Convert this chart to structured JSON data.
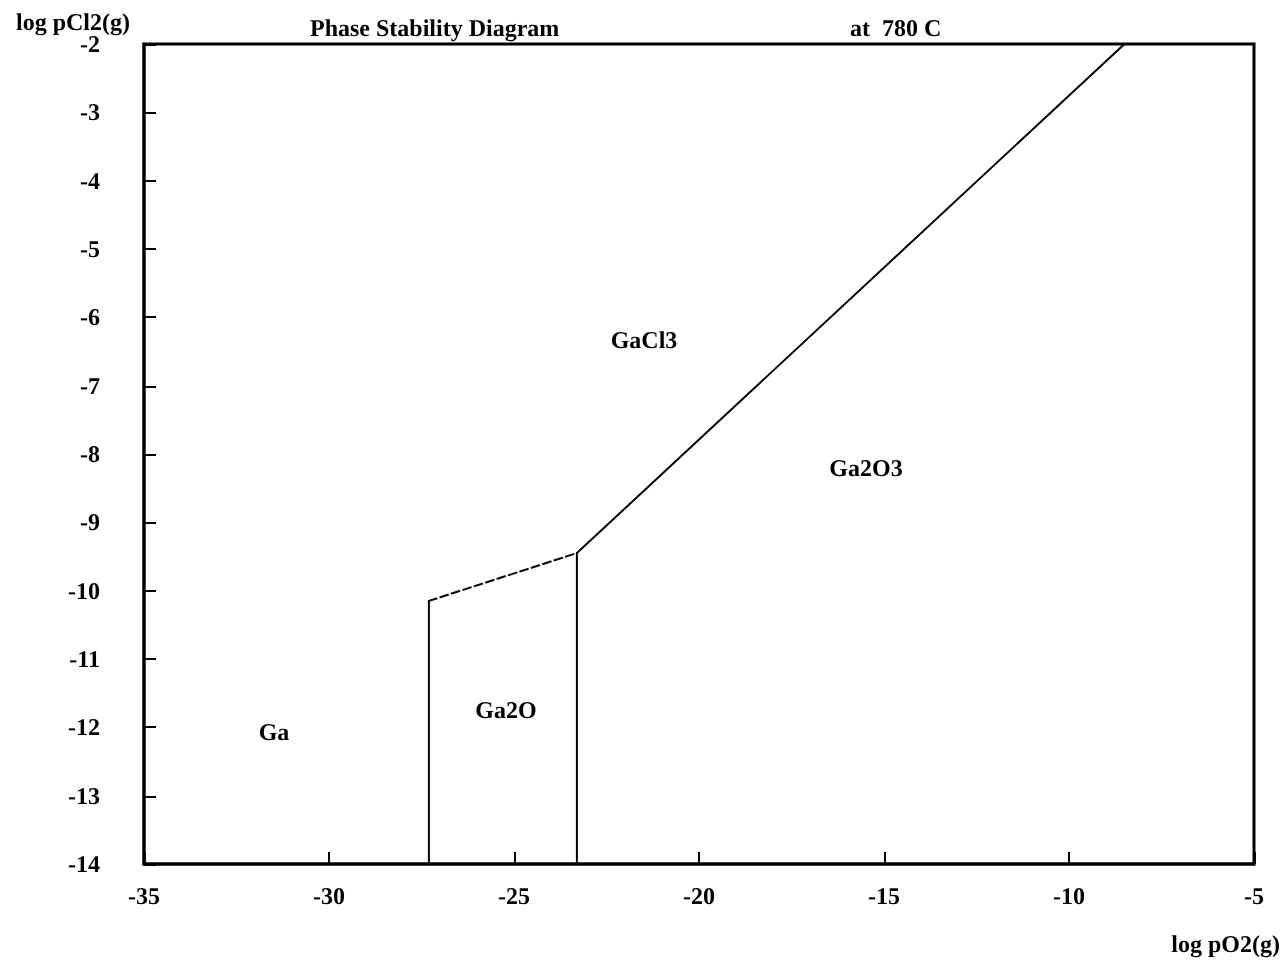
{
  "chart_data": {
    "type": "line",
    "title": "Phase Stability Diagram",
    "subtitle": "at  780 C",
    "xlabel": "log pO2(g)",
    "ylabel": "log pCl2(g)",
    "xlim": [
      -35,
      -5
    ],
    "xticks": [
      -35,
      -30,
      -25,
      -20,
      -15,
      -10,
      -5
    ],
    "ylim": [
      -14,
      -2
    ],
    "yticks": [
      -14,
      -13,
      -12,
      -11,
      -10,
      -9,
      -8,
      -7,
      -6,
      -5,
      -4,
      -3,
      -2
    ],
    "marker": "none",
    "line_style": "solid",
    "series": [
      {
        "color": "#000000",
        "x": [
          -27.3,
          -27.3
        ],
        "values": [
          -14,
          -10.15
        ]
      },
      {
        "color": "#000000",
        "x": [
          -23.3,
          -23.3
        ],
        "values": [
          -14,
          -9.45
        ]
      },
      {
        "color": "#000000",
        "x": [
          -27.3,
          -23.3
        ],
        "values": [
          -10.15,
          -9.45
        ],
        "line_style": "dashed"
      },
      {
        "color": "#000000",
        "x": [
          -23.3,
          -8.5
        ],
        "values": [
          -9.45,
          -2
        ]
      }
    ],
    "annotations": [
      "Ga",
      "Ga2O",
      "GaCl3",
      "Ga2O3"
    ]
  }
}
